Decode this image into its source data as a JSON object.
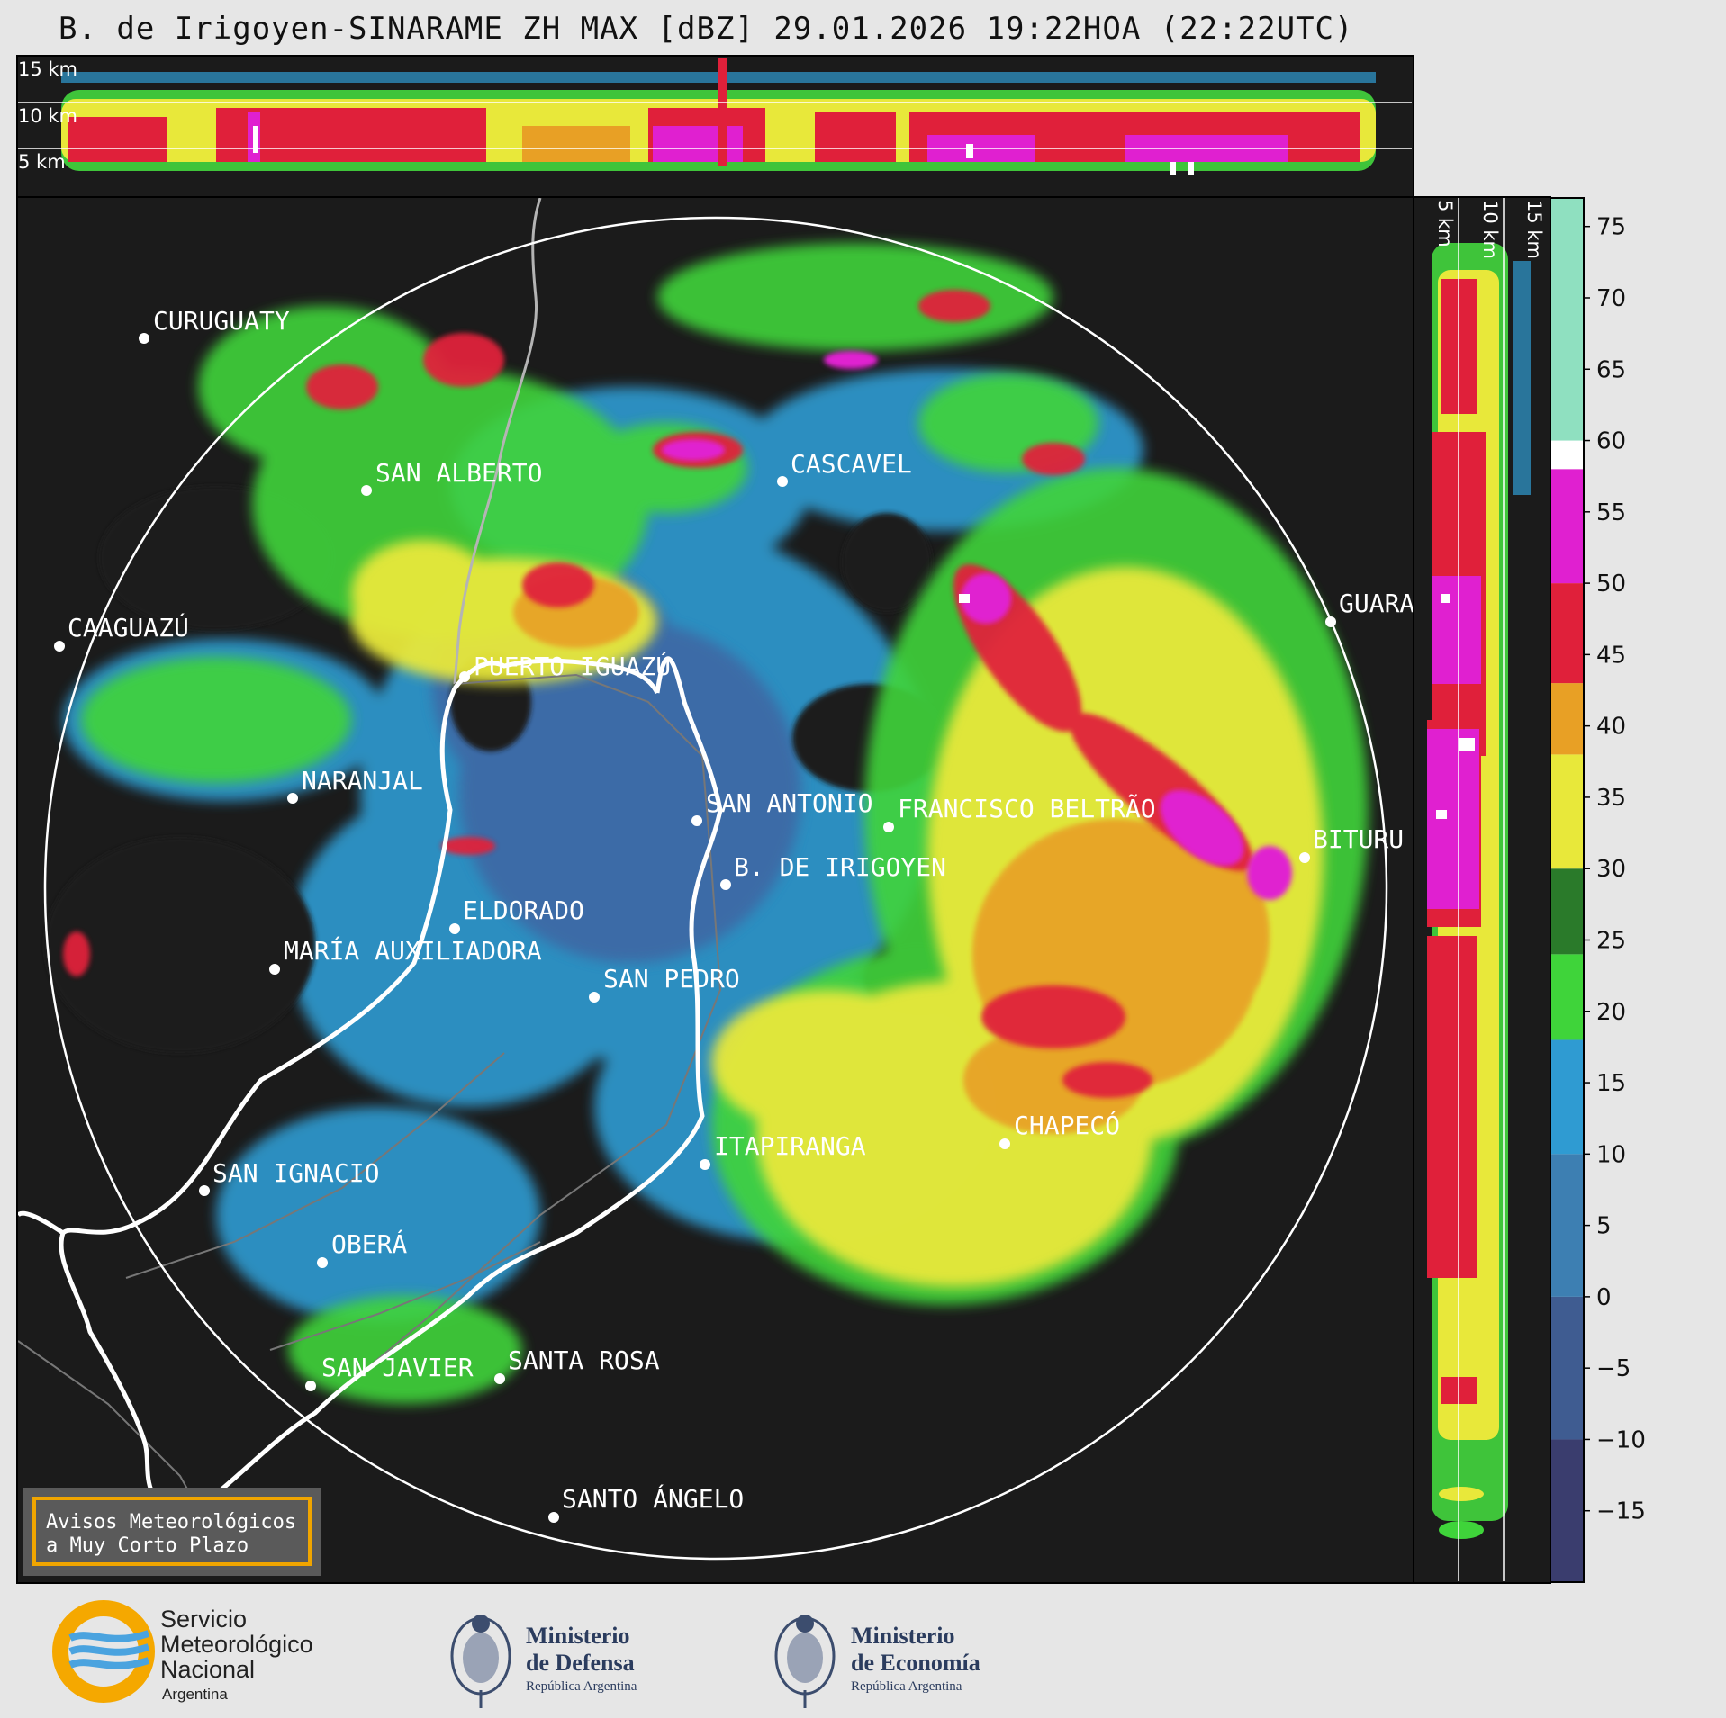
{
  "title": "B. de Irigoyen-SINARAME ZH MAX [dBZ] 29.01.2026 19:22HOA (22:22UTC)",
  "top_panel": {
    "height_labels": [
      "15 km",
      "10 km",
      "5 km"
    ]
  },
  "side_panel": {
    "height_labels": [
      "5 km",
      "10 km",
      "15 km"
    ]
  },
  "colorbar": {
    "ticks": [
      "75",
      "70",
      "65",
      "60",
      "55",
      "50",
      "45",
      "40",
      "35",
      "30",
      "25",
      "20",
      "15",
      "10",
      "5",
      "0",
      "−5",
      "−10",
      "−15"
    ],
    "tick_values": [
      75,
      70,
      65,
      60,
      55,
      50,
      45,
      40,
      35,
      30,
      25,
      20,
      15,
      10,
      5,
      0,
      -5,
      -10,
      -15
    ],
    "range": [
      -20,
      77
    ],
    "bands": [
      {
        "from": -20,
        "to": -10,
        "color": "#3a3d6e"
      },
      {
        "from": -10,
        "to": 0,
        "color": "#3f5c91"
      },
      {
        "from": 0,
        "to": 10,
        "color": "#3d7fb2"
      },
      {
        "from": 10,
        "to": 18,
        "color": "#2f9bd2"
      },
      {
        "from": 18,
        "to": 24,
        "color": "#3fd43a"
      },
      {
        "from": 24,
        "to": 30,
        "color": "#2a7a2a"
      },
      {
        "from": 30,
        "to": 38,
        "color": "#e8e83a"
      },
      {
        "from": 38,
        "to": 43,
        "color": "#e8a025"
      },
      {
        "from": 43,
        "to": 50,
        "color": "#e0203a"
      },
      {
        "from": 50,
        "to": 58,
        "color": "#e020d0"
      },
      {
        "from": 58,
        "to": 60,
        "color": "#ffffff"
      },
      {
        "from": 60,
        "to": 77,
        "color": "#8fe0c0"
      }
    ]
  },
  "cities": [
    {
      "name": "CURUGUATY"
    },
    {
      "name": "SAN ALBERTO"
    },
    {
      "name": "CASCAVEL"
    },
    {
      "name": "CAAGUAZÚ"
    },
    {
      "name": "GUARA"
    },
    {
      "name": "PUERTO IGUAZÚ"
    },
    {
      "name": "NARANJAL"
    },
    {
      "name": "SAN ANTONIO"
    },
    {
      "name": "FRANCISCO BELTRÃO"
    },
    {
      "name": "BITURU"
    },
    {
      "name": "B. DE IRIGOYEN"
    },
    {
      "name": "ELDORADO"
    },
    {
      "name": "MARÍA AUXILIADORA"
    },
    {
      "name": "SAN PEDRO"
    },
    {
      "name": "CHAPECÓ"
    },
    {
      "name": "ITAPIRANGA"
    },
    {
      "name": "SAN IGNACIO"
    },
    {
      "name": "OBERÁ"
    },
    {
      "name": "SAN JAVIER"
    },
    {
      "name": "SANTA ROSA"
    },
    {
      "name": "SANTO ÁNGELO"
    }
  ],
  "warning_box": {
    "line1": "Avisos Meteorológicos",
    "line2": "a Muy Corto Plazo"
  },
  "logos": {
    "smn": {
      "line1": "Servicio",
      "line2": "Meteorológico",
      "line3": "Nacional",
      "line4": "Argentina"
    },
    "defensa": {
      "line1": "Ministerio",
      "line2": "de Defensa",
      "line3": "República Argentina"
    },
    "economia": {
      "line1": "Ministerio",
      "line2": "de Economía",
      "line3": "República Argentina"
    }
  }
}
